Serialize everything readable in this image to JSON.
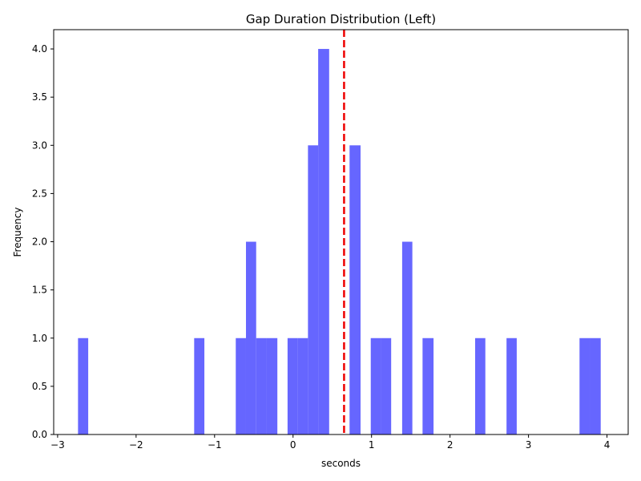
{
  "chart_data": {
    "type": "bar",
    "title": "Gap Duration Distribution (Left)",
    "xlabel": "seconds",
    "ylabel": "Frequency",
    "xlim": [
      -3.05,
      4.27
    ],
    "ylim": [
      0,
      4.2
    ],
    "xticks": [
      -3,
      -2,
      -1,
      0,
      1,
      2,
      3,
      4
    ],
    "yticks": [
      0.0,
      0.5,
      1.0,
      1.5,
      2.0,
      2.5,
      3.0,
      3.5,
      4.0
    ],
    "ytick_labels": [
      "0.0",
      "0.5",
      "1.0",
      "1.5",
      "2.0",
      "2.5",
      "3.0",
      "3.5",
      "4.0"
    ],
    "bar_color": "#6666ff",
    "mean_line": {
      "x": 0.65,
      "color": "#ee0000",
      "style": "dashed"
    },
    "bins": [
      {
        "x0": -2.74,
        "x1": -2.61,
        "count": 1
      },
      {
        "x0": -1.26,
        "x1": -1.13,
        "count": 1
      },
      {
        "x0": -0.73,
        "x1": -0.6,
        "count": 1
      },
      {
        "x0": -0.6,
        "x1": -0.47,
        "count": 2
      },
      {
        "x0": -0.47,
        "x1": -0.34,
        "count": 1
      },
      {
        "x0": -0.34,
        "x1": -0.2,
        "count": 1
      },
      {
        "x0": -0.07,
        "x1": 0.06,
        "count": 1
      },
      {
        "x0": 0.06,
        "x1": 0.19,
        "count": 1
      },
      {
        "x0": 0.19,
        "x1": 0.32,
        "count": 3
      },
      {
        "x0": 0.32,
        "x1": 0.46,
        "count": 4
      },
      {
        "x0": 0.72,
        "x1": 0.86,
        "count": 3
      },
      {
        "x0": 0.99,
        "x1": 1.12,
        "count": 1
      },
      {
        "x0": 1.12,
        "x1": 1.25,
        "count": 1
      },
      {
        "x0": 1.39,
        "x1": 1.52,
        "count": 2
      },
      {
        "x0": 1.65,
        "x1": 1.79,
        "count": 1
      },
      {
        "x0": 2.32,
        "x1": 2.45,
        "count": 1
      },
      {
        "x0": 2.72,
        "x1": 2.85,
        "count": 1
      },
      {
        "x0": 3.65,
        "x1": 3.79,
        "count": 1
      },
      {
        "x0": 3.79,
        "x1": 3.92,
        "count": 1
      }
    ]
  }
}
